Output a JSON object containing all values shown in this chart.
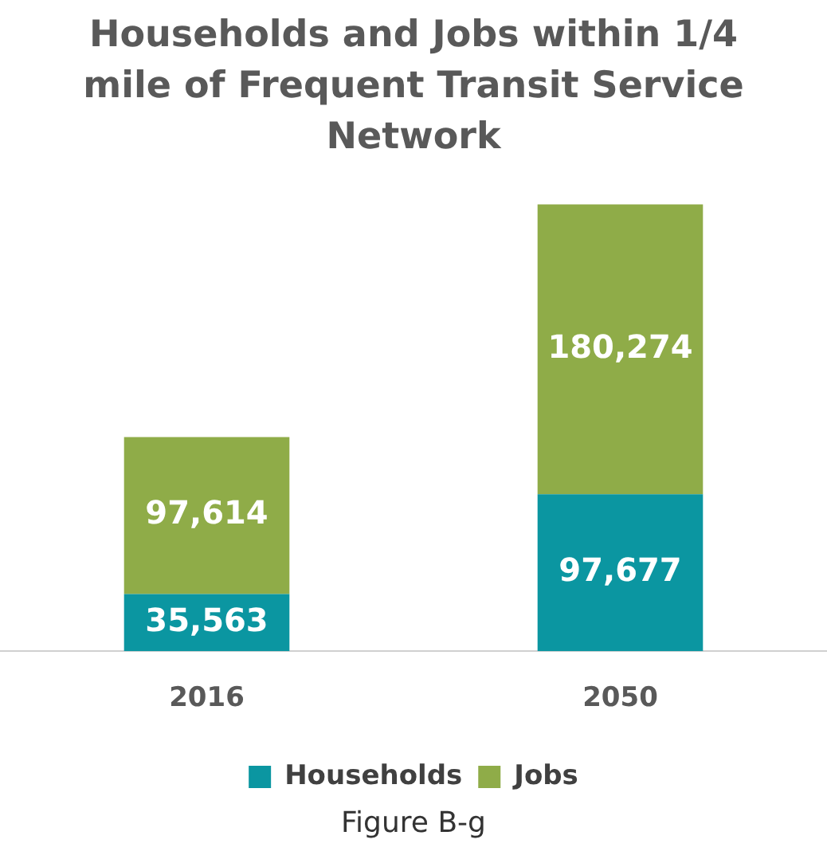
{
  "chart_data": {
    "type": "bar",
    "title": "Households and Jobs within 1/4 mile of Frequent Transit Service Network",
    "categories": [
      "2016",
      "2050"
    ],
    "stacked": true,
    "series": [
      {
        "name": "Households",
        "color": "#0b96a1",
        "values": [
          35563,
          97677
        ],
        "value_labels": [
          "35,563",
          "97,677"
        ]
      },
      {
        "name": "Jobs",
        "color": "#8fac48",
        "values": [
          97614,
          180274
        ],
        "value_labels": [
          "97,614",
          "180,274"
        ]
      }
    ],
    "legend": "bottom",
    "grid": false,
    "annotations": [
      "Figure B-g"
    ]
  }
}
